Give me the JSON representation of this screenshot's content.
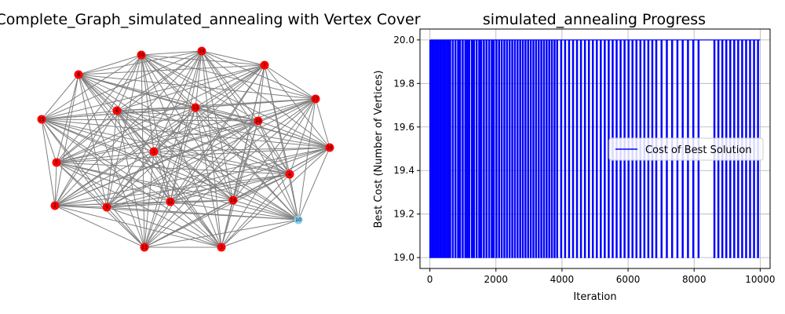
{
  "chart_data": [
    {
      "type": "network",
      "title": "Complete_Graph_simulated_annealing with Vertex Cover",
      "node_labels": [
        "1",
        "2",
        "3",
        "4",
        "5",
        "6",
        "7",
        "8",
        "9",
        "10",
        "11",
        "12",
        "13",
        "14",
        "15",
        "16",
        "17",
        "18",
        "19",
        "20"
      ],
      "colors": {
        "cover": "#ff0000",
        "not_cover": "#87ceeb",
        "edge": "#808080"
      },
      "cover_vertices": [
        "1",
        "2",
        "3",
        "4",
        "5",
        "6",
        "7",
        "8",
        "9",
        "11",
        "12",
        "13",
        "14",
        "15",
        "16",
        "17",
        "18",
        "19",
        "20"
      ],
      "non_cover_vertices": [
        "10"
      ]
    },
    {
      "type": "line",
      "title": "simulated_annealing Progress",
      "xlabel": "Iteration",
      "ylabel": "Best Cost (Number of Vertices)",
      "xlim": [
        -300,
        10300
      ],
      "ylim": [
        18.95,
        20.05
      ],
      "x_ticks": [
        0,
        2000,
        4000,
        6000,
        8000,
        10000
      ],
      "y_ticks": [
        19.0,
        19.2,
        19.4,
        19.6,
        19.8,
        20.0
      ],
      "x_tick_labels": [
        "0",
        "2000",
        "4000",
        "6000",
        "8000",
        "10000"
      ],
      "y_tick_labels": [
        "19.0",
        "19.2",
        "19.4",
        "19.6",
        "19.8",
        "20.0"
      ],
      "grid": true,
      "legend_position": "center-right",
      "series": [
        {
          "name": "Cost of Best Solution",
          "color": "#0000ff",
          "x_range": [
            0,
            10000
          ],
          "values": [
            20,
            19
          ],
          "dips_to_19_at": [
            0,
            60,
            120,
            180,
            240,
            300,
            360,
            420,
            480,
            540,
            600,
            680,
            760,
            840,
            900,
            980,
            1060,
            1120,
            1180,
            1260,
            1320,
            1400,
            1480,
            1540,
            1620,
            1700,
            1780,
            1860,
            1920,
            2000,
            2080,
            2160,
            2240,
            2320,
            2400,
            2480,
            2560,
            2640,
            2720,
            2800,
            2880,
            2960,
            3040,
            3120,
            3200,
            3280,
            3360,
            3440,
            3520,
            3600,
            3680,
            3760,
            3840,
            3960,
            4080,
            4200,
            4320,
            4440,
            4560,
            4680,
            4800,
            4920,
            5040,
            5160,
            5280,
            5400,
            5520,
            5640,
            5760,
            5880,
            6000,
            6120,
            6240,
            6360,
            6480,
            6600,
            6720,
            6840,
            7000,
            7160,
            7320,
            7480,
            7640,
            7800,
            7960,
            8120,
            8600,
            8720,
            8840,
            8960,
            9080,
            9200,
            9320,
            9440,
            9560,
            9680,
            9800,
            9920
          ]
        }
      ]
    }
  ]
}
